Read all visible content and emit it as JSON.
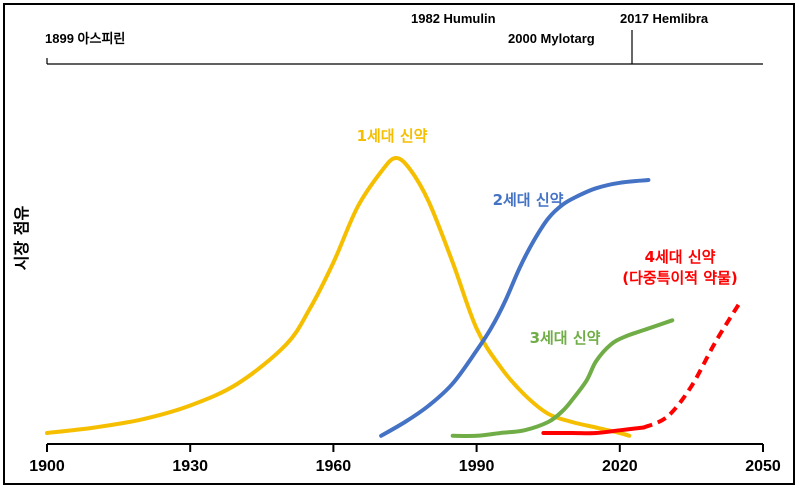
{
  "chart_data": {
    "type": "line",
    "xlim": [
      1900,
      2050
    ],
    "ylim": [
      0,
      100
    ],
    "x_ticks": [
      "1900",
      "1930",
      "1960",
      "1990",
      "2020",
      "2050"
    ],
    "xlabel": "",
    "ylabel": "시장 점유",
    "grid": false,
    "milestones": [
      {
        "label": "1899 아스피린",
        "year": 1899
      },
      {
        "label": "1982 Humulin",
        "year": 1982
      },
      {
        "label": "2000 Mylotarg",
        "year": 2000
      },
      {
        "label": "2017 Hemlibra",
        "year": 2017
      }
    ],
    "series": [
      {
        "label_lines": [
          "1세대 신약"
        ],
        "color": "#f5bf00",
        "dashed": false,
        "x": [
          1900,
          1910,
          1920,
          1930,
          1940,
          1950,
          1955,
          1960,
          1965,
          1970,
          1973,
          1976,
          1980,
          1985,
          1990,
          1995,
          2000,
          2005,
          2010,
          2015,
          2020,
          2022
        ],
        "y": [
          0,
          2,
          5,
          10,
          18,
          32,
          45,
          62,
          82,
          95,
          100,
          96,
          84,
          62,
          38,
          24,
          14,
          7,
          4,
          2,
          0,
          -1
        ]
      },
      {
        "label_lines": [
          "2세대 신약"
        ],
        "color": "#4472c4",
        "dashed": false,
        "x": [
          1970,
          1975,
          1980,
          1985,
          1990,
          1993,
          1996,
          1999,
          2002,
          2005,
          2008,
          2011,
          2015,
          2020,
          2026
        ],
        "y": [
          -1,
          4,
          10,
          18,
          30,
          38,
          48,
          60,
          70,
          78,
          83,
          86,
          89,
          91,
          92
        ]
      },
      {
        "label_lines": [
          "3세대 신약"
        ],
        "color": "#70ad47",
        "dashed": false,
        "x": [
          1985,
          1990,
          1995,
          2000,
          2005,
          2008,
          2010,
          2013,
          2015,
          2018,
          2021,
          2026,
          2031
        ],
        "y": [
          -1,
          -1,
          0,
          1,
          4,
          8,
          12,
          19,
          26,
          32,
          35,
          38,
          41
        ]
      },
      {
        "label_lines": [
          "4세대 신약",
          "(다중특이적 약물)"
        ],
        "color": "#ff0000",
        "dashed": false,
        "x": [
          2004,
          2010,
          2015,
          2020,
          2025
        ],
        "y": [
          0,
          0,
          0,
          1,
          2
        ]
      },
      {
        "label_lines": [],
        "color": "#ff0000",
        "dashed": true,
        "x": [
          2025,
          2030,
          2035,
          2040,
          2045
        ],
        "y": [
          2,
          6,
          17,
          33,
          47
        ]
      }
    ]
  }
}
